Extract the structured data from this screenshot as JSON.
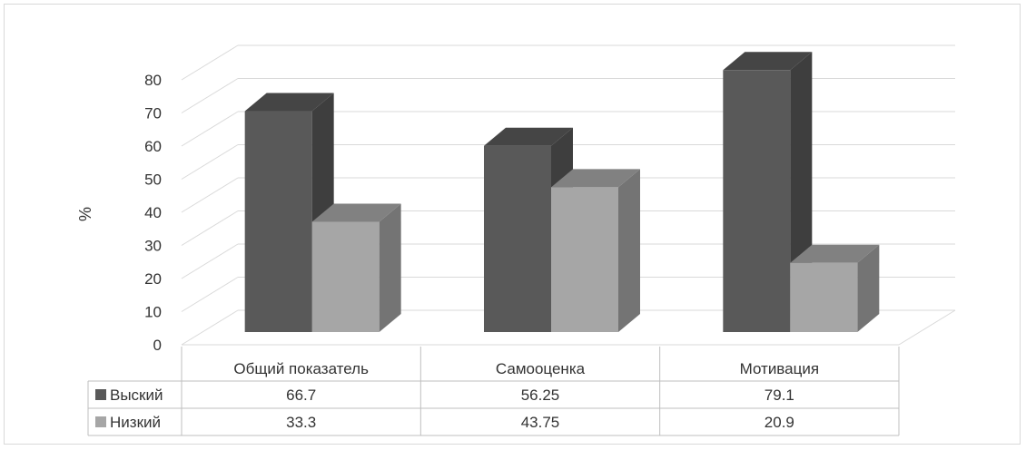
{
  "chart_data": {
    "type": "bar",
    "subtype": "3d-clustered-column-with-data-table",
    "title": "",
    "ylabel": "%",
    "ylim": [
      0,
      80
    ],
    "yticks": [
      0,
      10,
      20,
      30,
      40,
      50,
      60,
      70,
      80
    ],
    "categories": [
      "Общий показатель",
      "Самооценка",
      "Мотивация"
    ],
    "series": [
      {
        "name": "Выский",
        "values": [
          66.7,
          56.25,
          79.1
        ],
        "color": "#595959"
      },
      {
        "name": "Низкий",
        "values": [
          33.3,
          43.75,
          20.9
        ],
        "color": "#a6a6a6"
      }
    ],
    "data_table": {
      "rows": [
        {
          "label": "Выский",
          "values": [
            "66.7",
            "56.25",
            "79.1"
          ]
        },
        {
          "label": "Низкий",
          "values": [
            "33.3",
            "43.75",
            "20.9"
          ]
        }
      ]
    },
    "grid": true
  }
}
